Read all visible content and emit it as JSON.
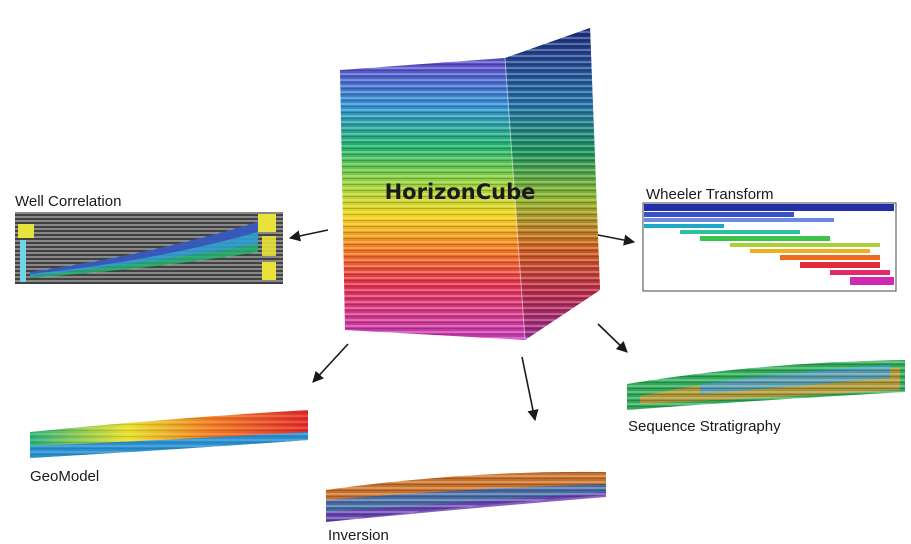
{
  "center": {
    "label": "HorizonCube"
  },
  "products": [
    {
      "key": "well-correlation",
      "label": "Well Correlation"
    },
    {
      "key": "wheeler-transform",
      "label": "Wheeler Transform"
    },
    {
      "key": "sequence-stratigraphy",
      "label": "Sequence Stratigraphy"
    },
    {
      "key": "geomodel",
      "label": "GeoModel"
    },
    {
      "key": "inversion",
      "label": "Inversion"
    }
  ],
  "colors": {
    "arrow": "#1a1a1a",
    "well_panel_bg": "#555555",
    "well_log": "#e8e23a"
  }
}
